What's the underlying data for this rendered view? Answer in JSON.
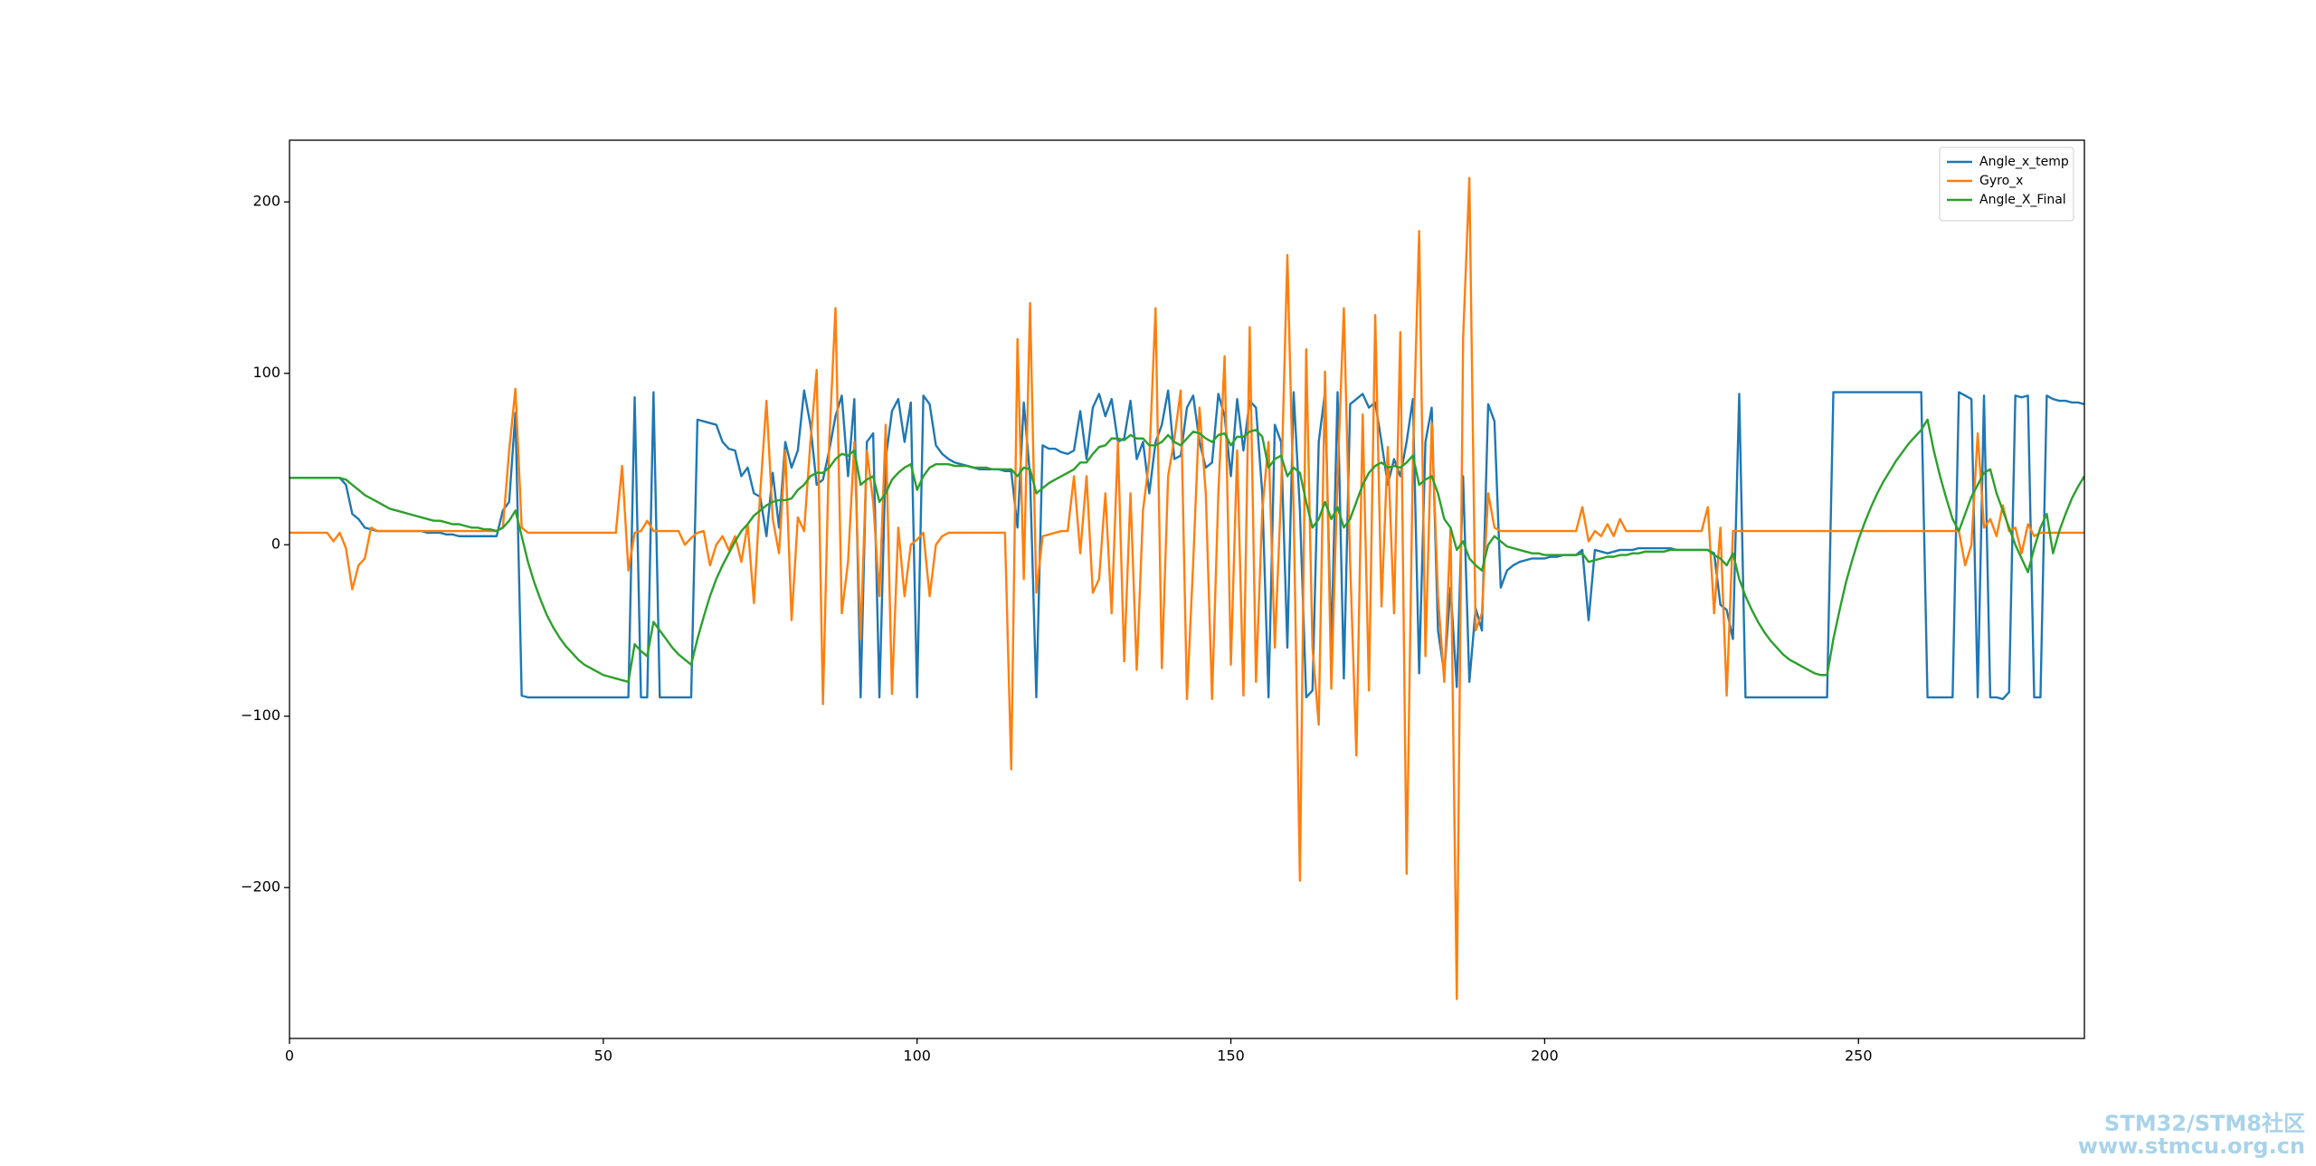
{
  "chart_data": {
    "type": "line",
    "x": [
      0,
      1,
      2,
      3,
      4,
      5,
      6,
      7,
      8,
      9,
      10,
      11,
      12,
      13,
      14,
      15,
      16,
      17,
      18,
      19,
      20,
      21,
      22,
      23,
      24,
      25,
      26,
      27,
      28,
      29,
      30,
      31,
      32,
      33,
      34,
      35,
      36,
      37,
      38,
      39,
      40,
      41,
      42,
      43,
      44,
      45,
      46,
      47,
      48,
      49,
      50,
      51,
      52,
      53,
      54,
      55,
      56,
      57,
      58,
      59,
      60,
      61,
      62,
      63,
      64,
      65,
      66,
      67,
      68,
      69,
      70,
      71,
      72,
      73,
      74,
      75,
      76,
      77,
      78,
      79,
      80,
      81,
      82,
      83,
      84,
      85,
      86,
      87,
      88,
      89,
      90,
      91,
      92,
      93,
      94,
      95,
      96,
      97,
      98,
      99,
      100,
      101,
      102,
      103,
      104,
      105,
      106,
      107,
      108,
      109,
      110,
      111,
      112,
      113,
      114,
      115,
      116,
      117,
      118,
      119,
      120,
      121,
      122,
      123,
      124,
      125,
      126,
      127,
      128,
      129,
      130,
      131,
      132,
      133,
      134,
      135,
      136,
      137,
      138,
      139,
      140,
      141,
      142,
      143,
      144,
      145,
      146,
      147,
      148,
      149,
      150,
      151,
      152,
      153,
      154,
      155,
      156,
      157,
      158,
      159,
      160,
      161,
      162,
      163,
      164,
      165,
      166,
      167,
      168,
      169,
      170,
      171,
      172,
      173,
      174,
      175,
      176,
      177,
      178,
      179,
      180,
      181,
      182,
      183,
      184,
      185,
      186,
      187,
      188,
      189,
      190,
      191,
      192,
      193,
      194,
      195,
      196,
      197,
      198,
      199,
      200,
      201,
      202,
      203,
      204,
      205,
      206,
      207,
      208,
      209,
      210,
      211,
      212,
      213,
      214,
      215,
      216,
      217,
      218,
      219,
      220,
      221,
      222,
      223,
      224,
      225,
      226,
      227,
      228,
      229,
      230,
      231,
      232,
      233,
      234,
      235,
      236,
      237,
      238,
      239,
      240,
      241,
      242,
      243,
      244,
      245,
      246,
      247,
      248,
      249,
      250,
      251,
      252,
      253,
      254,
      255,
      256,
      257,
      258,
      259,
      260,
      261,
      262,
      263,
      264,
      265,
      266,
      267,
      268,
      269,
      270,
      271,
      272,
      273,
      274,
      275,
      276,
      277,
      278,
      279,
      280,
      281,
      282,
      283,
      284,
      285,
      286
    ],
    "series": [
      {
        "name": "Angle_x_temp",
        "color": "#1f77b4",
        "values": [
          39,
          39,
          39,
          39,
          39,
          39,
          39,
          39,
          39,
          35,
          18,
          15,
          10,
          9,
          8,
          8,
          8,
          8,
          8,
          8,
          8,
          8,
          7,
          7,
          7,
          6,
          6,
          5,
          5,
          5,
          5,
          5,
          5,
          5,
          20,
          25,
          77,
          -88,
          -89,
          -89,
          -89,
          -89,
          -89,
          -89,
          -89,
          -89,
          -89,
          -89,
          -89,
          -89,
          -89,
          -89,
          -89,
          -89,
          -89,
          86,
          -89,
          -89,
          89,
          -89,
          -89,
          -89,
          -89,
          -89,
          -89,
          73,
          72,
          71,
          70,
          60,
          56,
          55,
          40,
          45,
          30,
          28,
          5,
          42,
          10,
          60,
          45,
          55,
          90,
          70,
          35,
          38,
          55,
          75,
          87,
          40,
          85,
          -89,
          60,
          65,
          -89,
          50,
          78,
          85,
          60,
          83,
          -89,
          87,
          82,
          58,
          53,
          50,
          48,
          47,
          46,
          45,
          44,
          44,
          44,
          44,
          43,
          43,
          10,
          83,
          40,
          -89,
          58,
          56,
          56,
          54,
          53,
          55,
          78,
          50,
          80,
          88,
          75,
          85,
          60,
          62,
          84,
          50,
          60,
          30,
          60,
          70,
          90,
          50,
          52,
          80,
          87,
          60,
          45,
          48,
          88,
          75,
          40,
          85,
          55,
          84,
          80,
          30,
          -89,
          70,
          60,
          -60,
          89,
          20,
          -89,
          -85,
          60,
          89,
          -60,
          89,
          -78,
          82,
          85,
          88,
          80,
          83,
          60,
          35,
          50,
          40,
          60,
          85,
          -75,
          60,
          80,
          -50,
          -75,
          -25,
          -83,
          40,
          -80,
          -37,
          -50,
          82,
          72,
          -25,
          -15,
          -12,
          -10,
          -9,
          -8,
          -8,
          -8,
          -7,
          -7,
          -6,
          -6,
          -6,
          -3,
          -44,
          -3,
          -4,
          -5,
          -4,
          -3,
          -3,
          -3,
          -2,
          -2,
          -2,
          -2,
          -2,
          -2,
          -3,
          -3,
          -3,
          -3,
          -3,
          -3,
          -5,
          -35,
          -38,
          -55,
          88,
          -89,
          -89,
          -89,
          -89,
          -89,
          -89,
          -89,
          -89,
          -89,
          -89,
          -89,
          -89,
          -89,
          -89,
          89,
          89,
          89,
          89,
          89,
          89,
          89,
          89,
          89,
          89,
          89,
          89,
          89,
          89,
          89,
          -89,
          -89,
          -89,
          -89,
          -89,
          89,
          87,
          85,
          -89,
          87,
          -89,
          -89,
          -90,
          -86,
          87,
          86,
          87,
          -89,
          -89,
          87,
          85,
          84,
          84,
          83,
          83,
          82
        ]
      },
      {
        "name": "Gyro_x",
        "color": "#ff7f0e",
        "values": [
          7,
          7,
          7,
          7,
          7,
          7,
          7,
          2,
          7,
          -2,
          -26,
          -12,
          -8,
          10,
          8,
          8,
          8,
          8,
          8,
          8,
          8,
          8,
          8,
          8,
          8,
          8,
          8,
          8,
          8,
          8,
          8,
          8,
          8,
          8,
          10,
          55,
          91,
          10,
          7,
          7,
          7,
          7,
          7,
          7,
          7,
          7,
          7,
          7,
          7,
          7,
          7,
          7,
          7,
          46,
          -15,
          7,
          8,
          14,
          8,
          8,
          8,
          8,
          8,
          0,
          4,
          7,
          8,
          -12,
          0,
          5,
          -3,
          5,
          -10,
          12,
          -34,
          30,
          84,
          15,
          -5,
          55,
          -44,
          16,
          8,
          60,
          102,
          -93,
          60,
          138,
          -40,
          -10,
          60,
          -55,
          55,
          25,
          -30,
          70,
          -87,
          10,
          -30,
          0,
          3,
          7,
          -30,
          0,
          5,
          7,
          7,
          7,
          7,
          7,
          7,
          7,
          7,
          7,
          7,
          -131,
          120,
          -20,
          141,
          -28,
          5,
          6,
          7,
          8,
          8,
          40,
          -5,
          40,
          -28,
          -20,
          30,
          -40,
          60,
          -68,
          30,
          -73,
          20,
          50,
          138,
          -72,
          40,
          62,
          90,
          -90,
          -10,
          80,
          30,
          -90,
          30,
          110,
          -70,
          55,
          -88,
          127,
          -80,
          20,
          60,
          -60,
          30,
          169,
          20,
          -196,
          114,
          -60,
          -105,
          101,
          -84,
          40,
          138,
          -10,
          -123,
          76,
          -85,
          134,
          -36,
          57,
          -40,
          124,
          -192,
          50,
          183,
          -65,
          71,
          -30,
          -80,
          10,
          -265,
          120,
          214,
          -50,
          -40,
          30,
          10,
          8,
          8,
          8,
          8,
          8,
          8,
          8,
          8,
          8,
          8,
          8,
          8,
          8,
          22,
          2,
          8,
          5,
          12,
          5,
          15,
          8,
          8,
          8,
          8,
          8,
          8,
          8,
          8,
          8,
          8,
          8,
          8,
          8,
          22,
          -40,
          10,
          -88,
          8,
          8,
          8,
          8,
          8,
          8,
          8,
          8,
          8,
          8,
          8,
          8,
          8,
          8,
          8,
          8,
          8,
          8,
          8,
          8,
          8,
          8,
          8,
          8,
          8,
          8,
          8,
          8,
          8,
          8,
          8,
          8,
          8,
          8,
          8,
          8,
          8,
          -12,
          0,
          65,
          10,
          15,
          5,
          23,
          8,
          10,
          -5,
          12,
          5,
          7,
          7,
          7,
          7,
          7,
          7,
          7,
          7
        ]
      },
      {
        "name": "Angle_X_Final",
        "color": "#2ca02c",
        "values": [
          39,
          39,
          39,
          39,
          39,
          39,
          39,
          39,
          39,
          38,
          35,
          32,
          29,
          27,
          25,
          23,
          21,
          20,
          19,
          18,
          17,
          16,
          15,
          14,
          14,
          13,
          12,
          12,
          11,
          10,
          10,
          9,
          9,
          8,
          10,
          14,
          20,
          5,
          -10,
          -22,
          -32,
          -41,
          -48,
          -54,
          -59,
          -63,
          -67,
          -70,
          -72,
          -74,
          -76,
          -77,
          -78,
          -79,
          -80,
          -58,
          -62,
          -65,
          -45,
          -50,
          -55,
          -60,
          -64,
          -67,
          -70,
          -55,
          -42,
          -30,
          -20,
          -12,
          -5,
          2,
          8,
          12,
          17,
          20,
          23,
          25,
          26,
          26,
          27,
          32,
          35,
          40,
          42,
          42,
          45,
          50,
          53,
          52,
          55,
          35,
          38,
          40,
          25,
          30,
          38,
          42,
          45,
          47,
          32,
          40,
          45,
          47,
          47,
          47,
          46,
          46,
          46,
          45,
          45,
          45,
          44,
          44,
          44,
          44,
          40,
          45,
          44,
          30,
          33,
          36,
          38,
          40,
          42,
          44,
          48,
          48,
          53,
          57,
          58,
          62,
          62,
          61,
          64,
          62,
          62,
          58,
          58,
          60,
          64,
          60,
          58,
          62,
          66,
          65,
          62,
          60,
          64,
          65,
          58,
          63,
          63,
          66,
          67,
          63,
          45,
          50,
          52,
          40,
          45,
          42,
          25,
          10,
          15,
          25,
          15,
          22,
          10,
          15,
          25,
          35,
          42,
          46,
          48,
          45,
          46,
          45,
          48,
          52,
          35,
          38,
          40,
          30,
          15,
          10,
          -3,
          2,
          -8,
          -12,
          -15,
          0,
          5,
          2,
          -1,
          -2,
          -3,
          -4,
          -5,
          -5,
          -6,
          -6,
          -6,
          -6,
          -6,
          -6,
          -5,
          -10,
          -9,
          -8,
          -7,
          -7,
          -6,
          -6,
          -5,
          -5,
          -4,
          -4,
          -4,
          -4,
          -3,
          -3,
          -3,
          -3,
          -3,
          -3,
          -3,
          -6,
          -8,
          -12,
          -5,
          -20,
          -30,
          -38,
          -45,
          -51,
          -56,
          -60,
          -64,
          -67,
          -69,
          -71,
          -73,
          -75,
          -76,
          -76,
          -55,
          -38,
          -22,
          -9,
          3,
          13,
          22,
          30,
          37,
          43,
          49,
          54,
          59,
          63,
          67,
          73,
          55,
          40,
          27,
          15,
          8,
          18,
          28,
          35,
          42,
          44,
          30,
          20,
          10,
          0,
          -8,
          -16,
          -2,
          10,
          18,
          -5,
          8,
          18,
          27,
          34,
          40
        ]
      }
    ],
    "xlim": [
      0,
      286
    ],
    "xticks": [
      0,
      50,
      100,
      150,
      200,
      250
    ],
    "ylim": [
      -288,
      236
    ],
    "yticks": [
      {
        "value": -200,
        "label": "−200"
      },
      {
        "value": -100,
        "label": "−100"
      },
      0,
      100,
      200
    ],
    "legend": "upper right",
    "grid": false
  },
  "watermark": [
    "STM32/STM8社区",
    "www.stmcu.org.cn"
  ]
}
